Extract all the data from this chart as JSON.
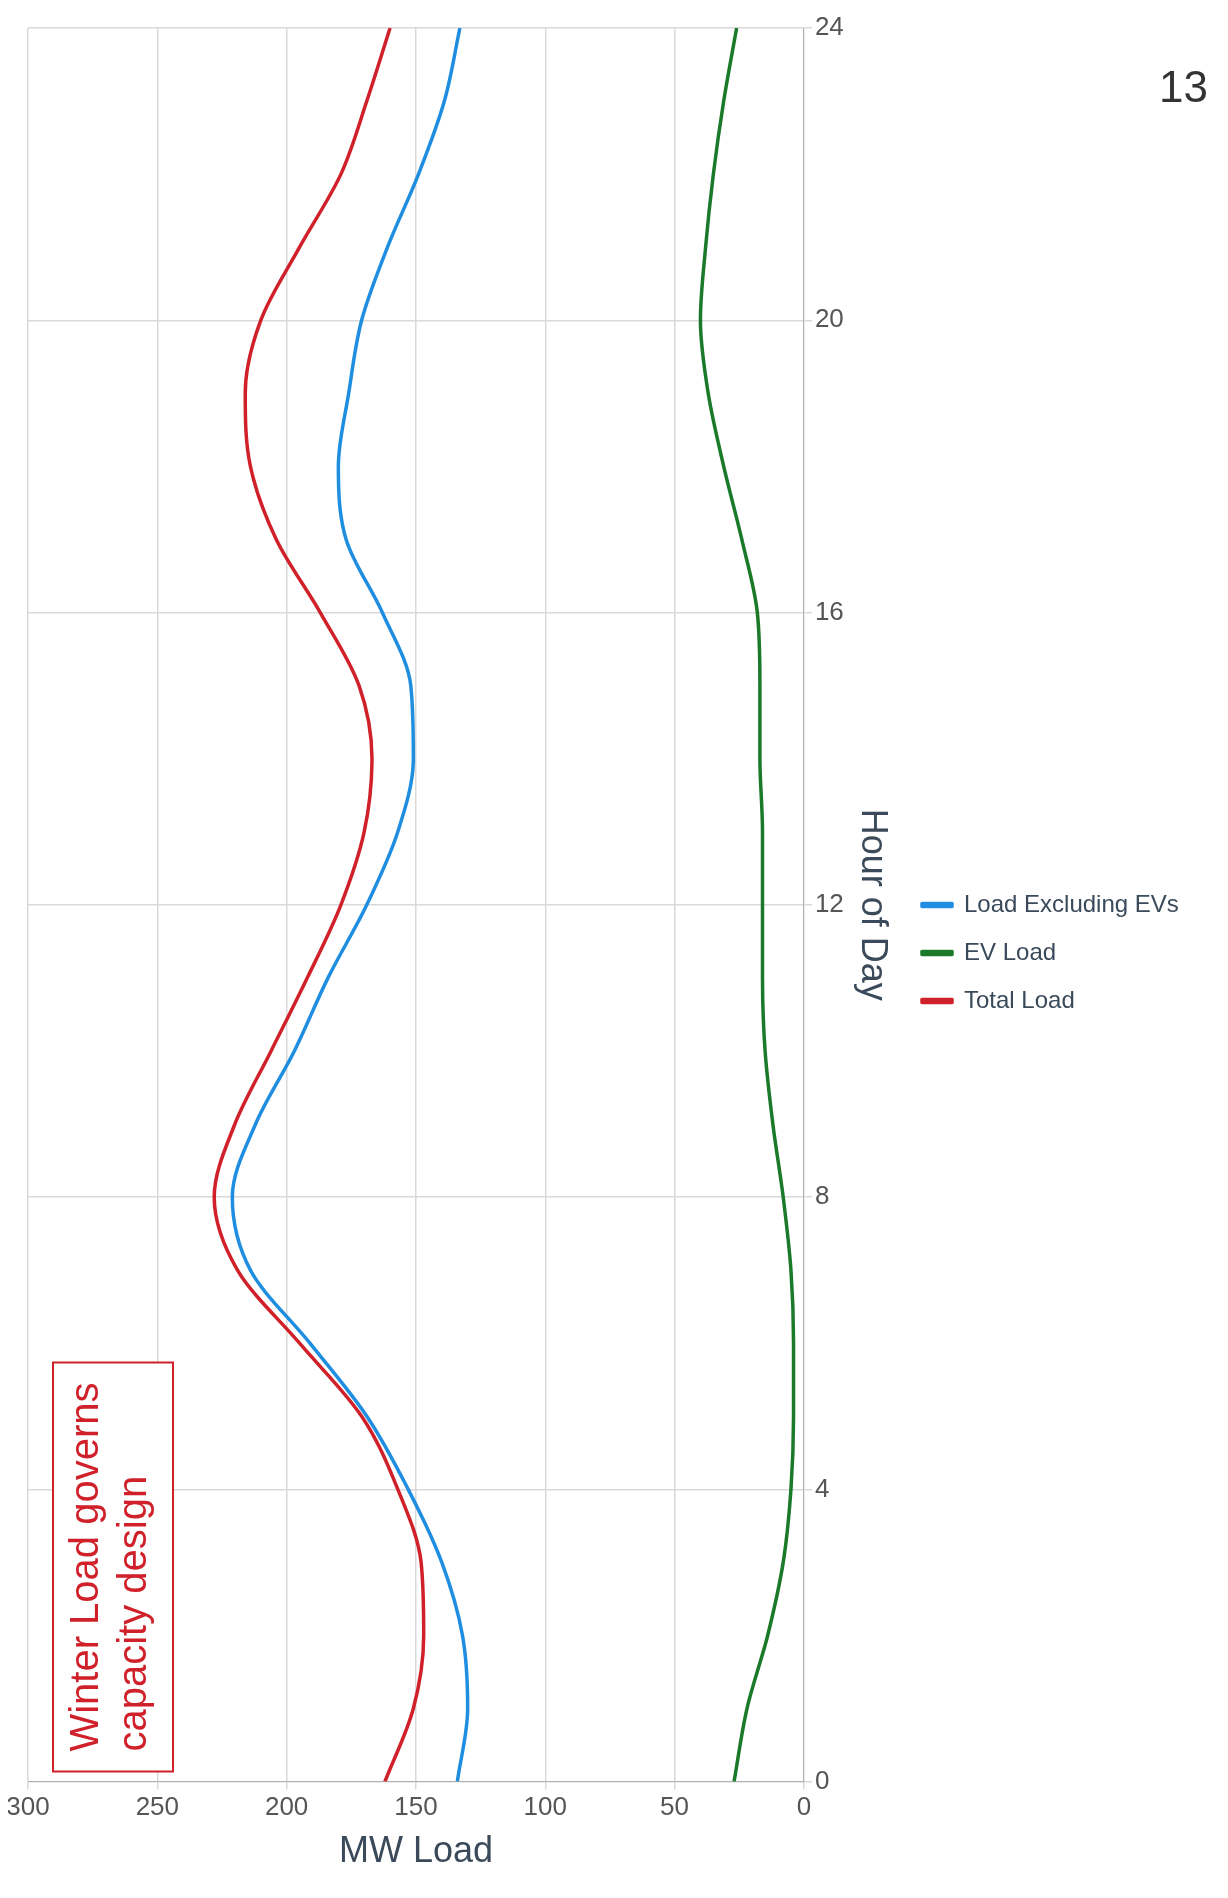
{
  "chart_data": {
    "type": "line",
    "xlabel": "MW Load",
    "ylabel": "Hour of Day",
    "series": [
      {
        "name": "Load Excluding EVs",
        "color": "#1f8ee0",
        "x": [
          134,
          130,
          132,
          140,
          153,
          169,
          191,
          214,
          221,
          212,
          197,
          184,
          169,
          157,
          151,
          152,
          163,
          177,
          180,
          176,
          171,
          161,
          149,
          139,
          133
        ],
        "values": [
          0,
          1,
          2,
          3,
          4,
          5,
          6,
          7,
          8,
          9,
          10,
          11,
          12,
          13,
          14,
          15,
          16,
          17,
          18,
          19,
          20,
          21,
          22,
          23,
          24
        ]
      },
      {
        "name": "EV Load",
        "color": "#1a7a2a",
        "x": [
          27,
          22,
          14,
          8,
          5,
          4,
          4,
          5,
          8,
          12,
          15,
          16,
          16,
          16,
          17,
          17,
          18,
          24,
          31,
          37,
          40,
          38,
          35,
          31,
          26
        ],
        "values": [
          0,
          1,
          2,
          3,
          4,
          5,
          6,
          7,
          8,
          9,
          10,
          11,
          12,
          13,
          14,
          15,
          16,
          17,
          18,
          19,
          20,
          21,
          22,
          23,
          24
        ]
      },
      {
        "name": "Total Load",
        "color": "#d0202a",
        "x": [
          162,
          151,
          147,
          148,
          157,
          171,
          195,
          219,
          228,
          220,
          206,
          192,
          179,
          170,
          167,
          172,
          187,
          204,
          214,
          216,
          210,
          195,
          179,
          169,
          160
        ],
        "values": [
          0,
          1,
          2,
          3,
          4,
          5,
          6,
          7,
          8,
          9,
          10,
          11,
          12,
          13,
          14,
          15,
          16,
          17,
          18,
          19,
          20,
          21,
          22,
          23,
          24
        ]
      }
    ],
    "xlim": [
      300,
      0
    ],
    "xticks": [
      0,
      50,
      100,
      150,
      200,
      250,
      300
    ],
    "ylim": [
      0,
      24
    ],
    "yticks": [
      0,
      4,
      8,
      12,
      16,
      20,
      24
    ],
    "grid": true,
    "legend": "right",
    "marker": "none",
    "line_style": "solid",
    "annotations": [
      "Winter Load governs capacity design",
      "13"
    ]
  }
}
